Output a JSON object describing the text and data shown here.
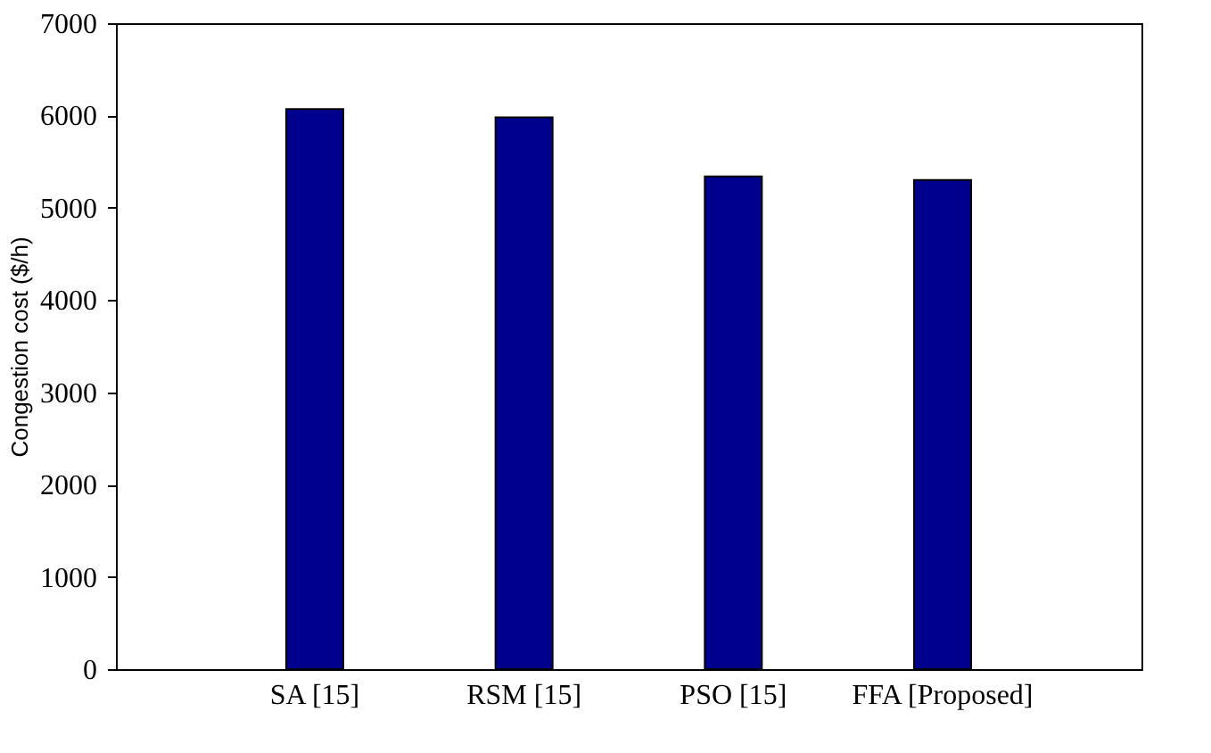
{
  "chart_data": {
    "type": "bar",
    "ylabel": "Congestion cost ($/h)",
    "categories": [
      "SA [15]",
      "RSM [15]",
      "PSO [15]",
      "FFA [Proposed]"
    ],
    "series": [
      {
        "color": "#00008f",
        "values": [
          6070,
          5980,
          5340,
          5300
        ]
      }
    ],
    "ylim": [
      0,
      7000
    ],
    "yticks": [
      0,
      1000,
      2000,
      3000,
      4000,
      5000,
      6000,
      7000
    ],
    "grid": false,
    "legend": false
  }
}
